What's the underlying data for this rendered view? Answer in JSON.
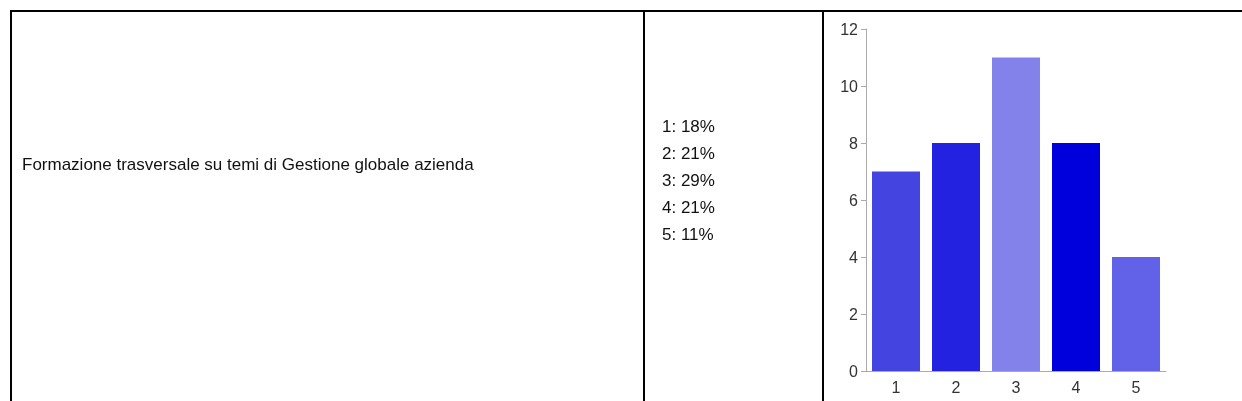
{
  "chart_data": {
    "type": "bar",
    "title": "Formazione trasversale su temi di Gestione globale azienda",
    "annotations": [
      "1: 18%",
      "2: 21%",
      "3: 29%",
      "4: 21%",
      "5: 11%"
    ],
    "categories": [
      "1",
      "2",
      "3",
      "4",
      "5"
    ],
    "values": [
      7,
      8,
      11,
      8,
      4
    ],
    "colors": [
      "#4444e0",
      "#2222e0",
      "#8282ea",
      "#0000dd",
      "#6262e8"
    ],
    "ylim": [
      0,
      12
    ],
    "yticks": [
      0,
      2,
      4,
      6,
      8,
      10,
      12
    ],
    "grid": false
  }
}
